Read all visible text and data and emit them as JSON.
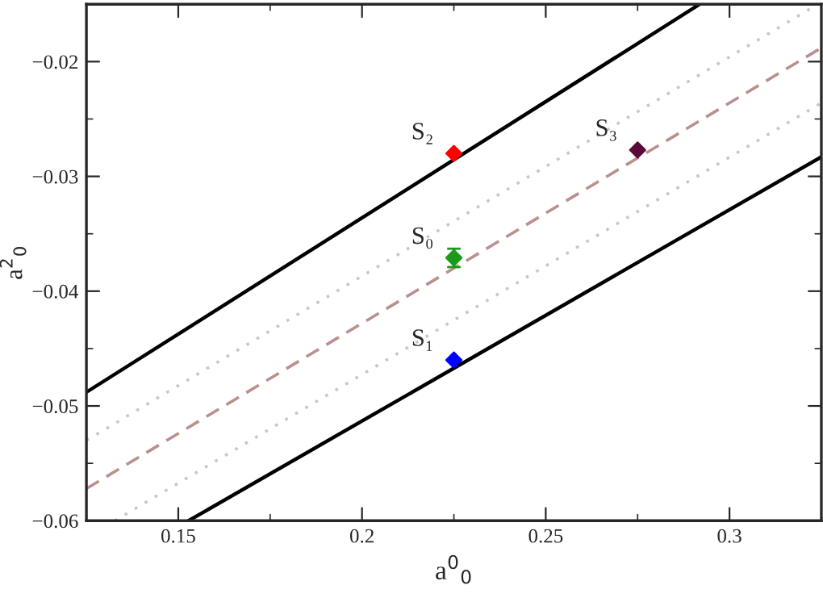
{
  "chart_data": {
    "type": "line",
    "xlabel": "a$^{0}$$_{0}$",
    "ylabel": "a$^{2}$$_{0}$",
    "xlim": [
      0.125,
      0.325
    ],
    "ylim": [
      -0.06,
      -0.015
    ],
    "xticks": [
      0.15,
      0.2,
      0.25,
      0.3
    ],
    "yticks": [
      -0.06,
      -0.05,
      -0.04,
      -0.03,
      -0.02
    ],
    "grid": false,
    "legend": false,
    "series": [
      {
        "color": "#000000",
        "line_style": "solid",
        "x": [
          0.125,
          0.2919
        ],
        "values": [
          -0.0488,
          -0.015
        ]
      },
      {
        "color": "#000000",
        "line_style": "solid",
        "x": [
          0.1528,
          0.325
        ],
        "values": [
          -0.06,
          -0.0283
        ]
      },
      {
        "color": "#bc8f8f",
        "line_style": "dashed",
        "x": [
          0.125,
          0.325
        ],
        "values": [
          -0.0572,
          -0.0188
        ]
      },
      {
        "color": "#c8c8c8",
        "line_style": "dotted",
        "x": [
          0.125,
          0.323
        ],
        "values": [
          -0.053,
          -0.0152
        ]
      },
      {
        "color": "#c8c8c8",
        "line_style": "dotted",
        "x": [
          0.1327,
          0.325
        ],
        "values": [
          -0.06,
          -0.0236
        ]
      },
      {
        "type": "scatter",
        "name": "S₀",
        "marker": "diamond",
        "x": [
          0.225
        ],
        "values": [
          -0.0371
        ],
        "color": "#1a9a1a",
        "errors": [
          0.0008
        ]
      },
      {
        "type": "scatter",
        "name": "S₁",
        "marker": "diamond",
        "x": [
          0.225
        ],
        "values": [
          -0.046
        ],
        "color": "#0000ff"
      },
      {
        "type": "scatter",
        "name": "S₂",
        "marker": "diamond",
        "x": [
          0.225
        ],
        "values": [
          -0.028
        ],
        "color": "#ff0000"
      },
      {
        "type": "scatter",
        "name": "S₃",
        "marker": "diamond",
        "x": [
          0.275
        ],
        "values": [
          -0.0277
        ],
        "color": "#5a0a3a"
      }
    ]
  }
}
